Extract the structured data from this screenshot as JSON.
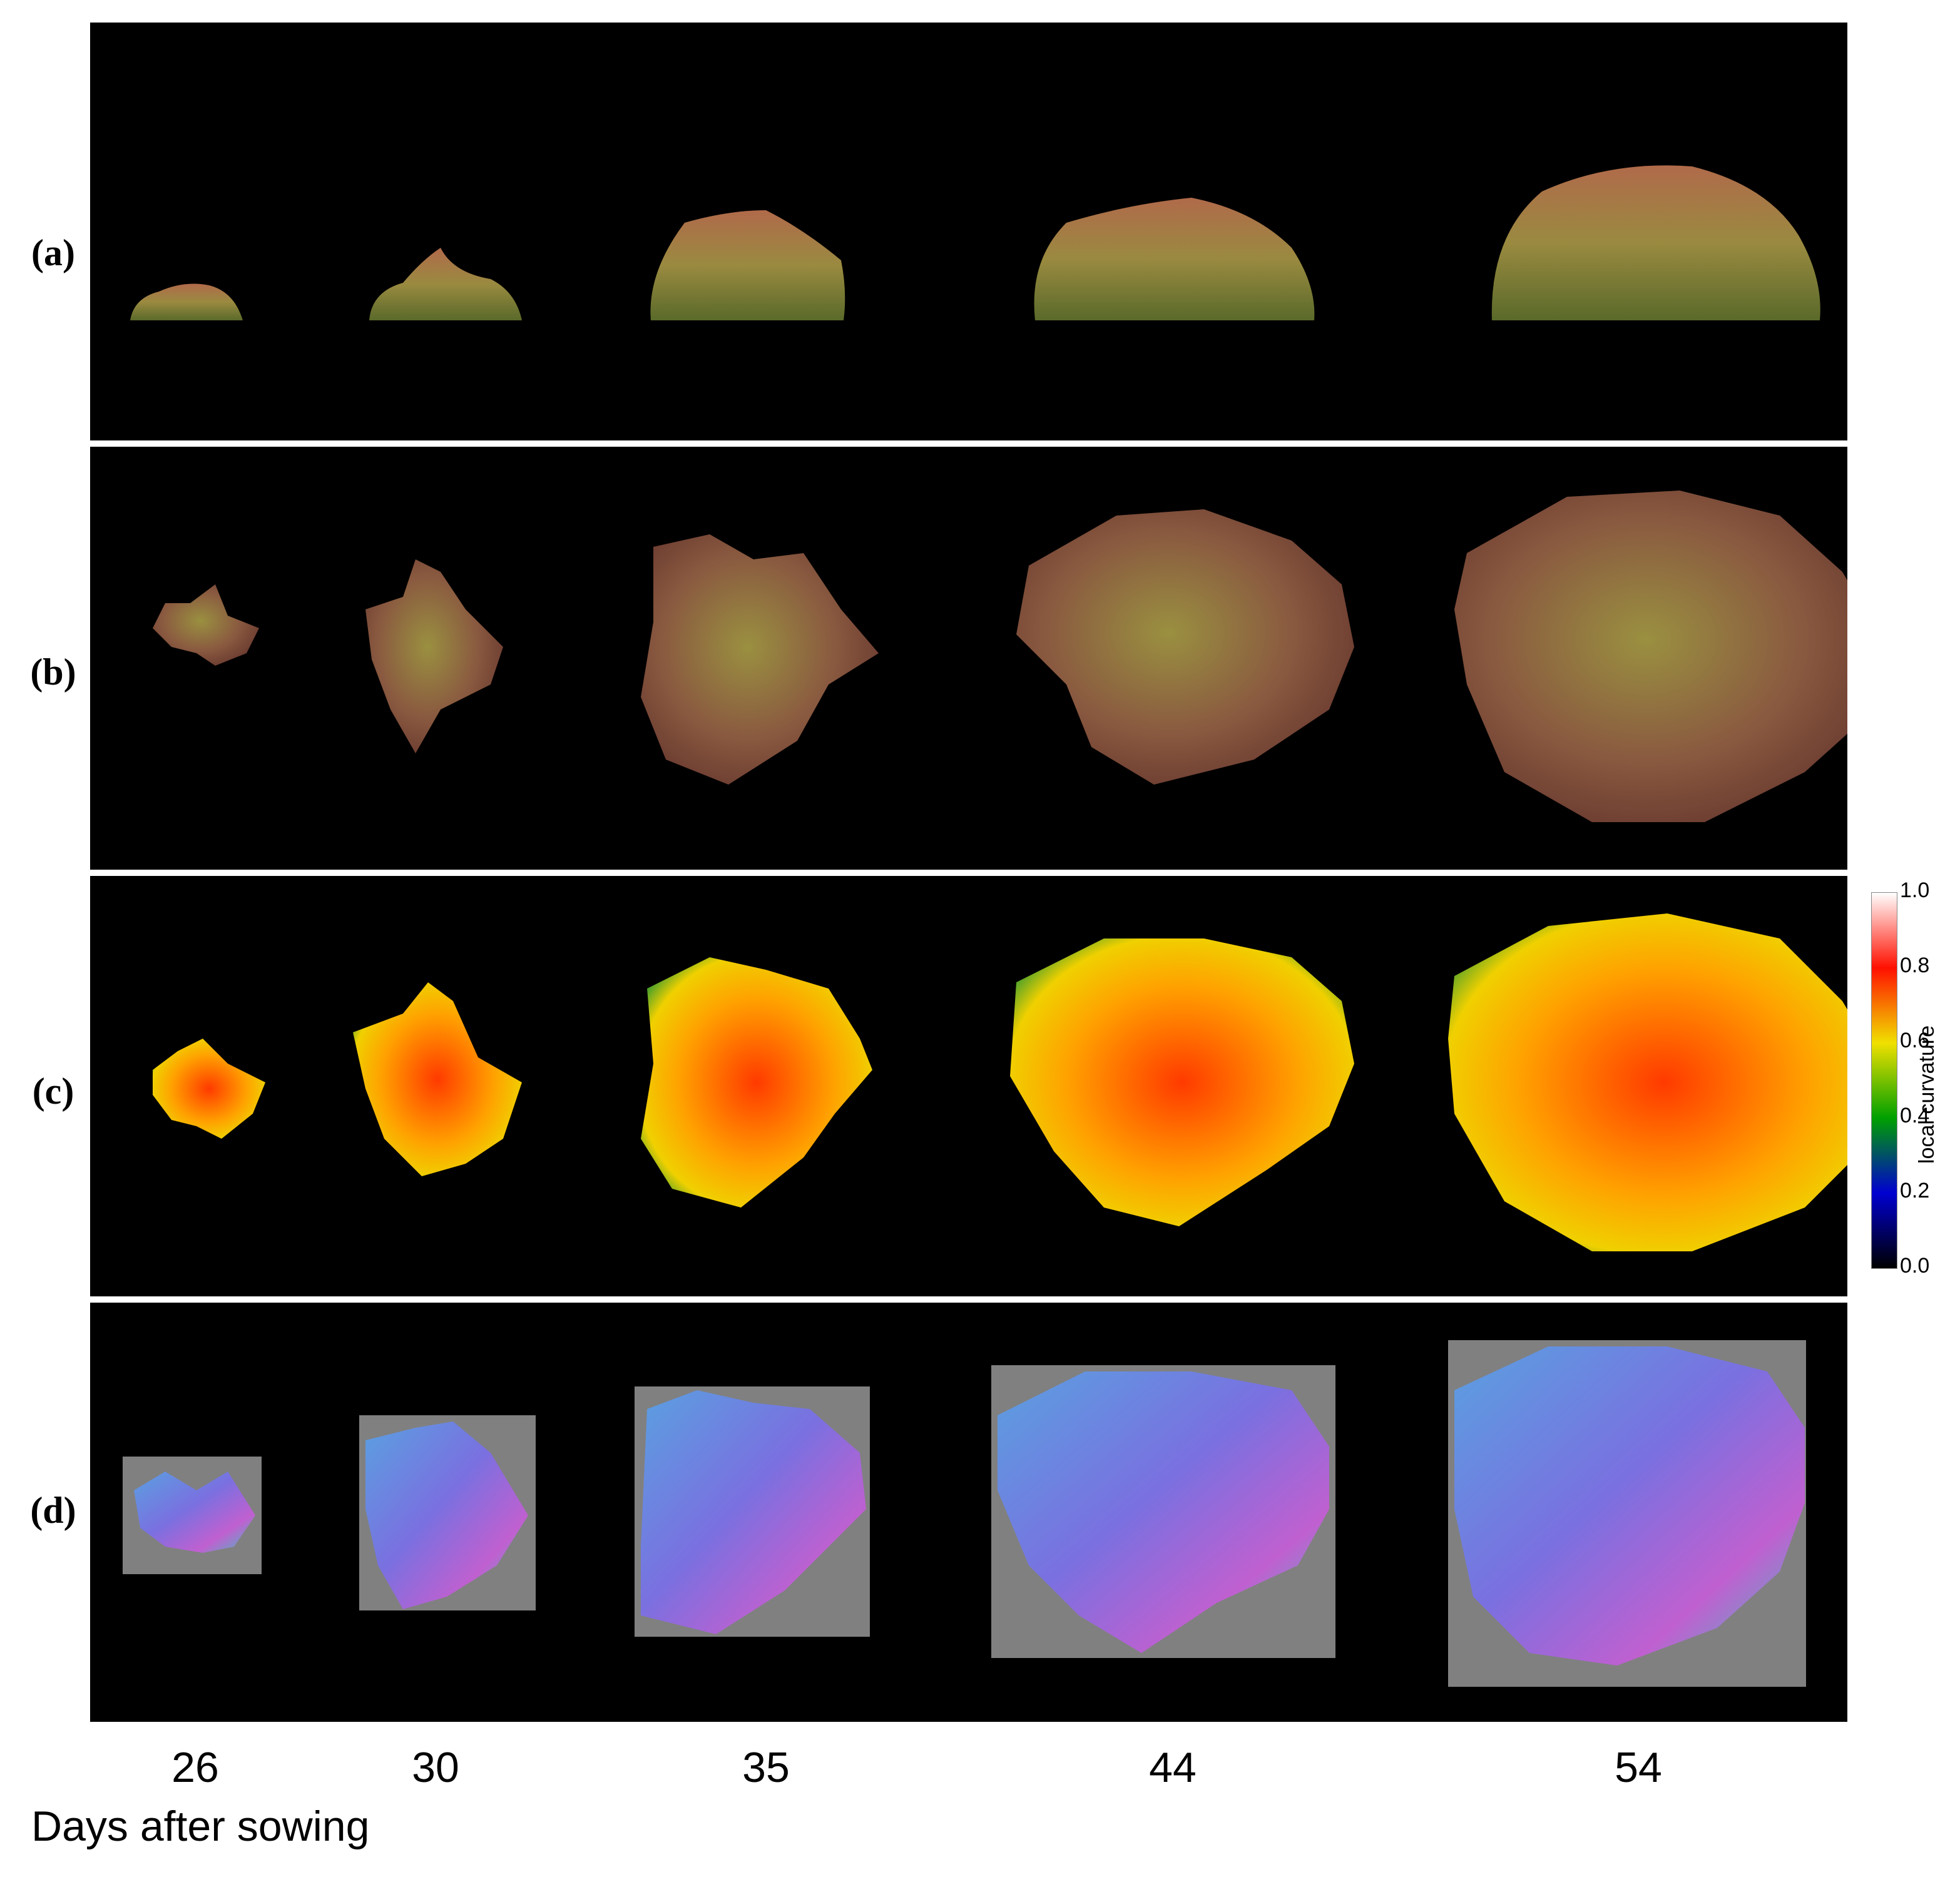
{
  "row_labels": [
    "(a)",
    "(b)",
    "(c)",
    "(d)"
  ],
  "days": [
    "26",
    "30",
    "35",
    "44",
    "54"
  ],
  "x_axis_title": "Days after sowing",
  "colorbar": {
    "label": "local curvature",
    "ticks": [
      "1.0",
      "0.8",
      "0.6",
      "0.4",
      "0.2",
      "0.0"
    ]
  },
  "colors": {
    "background": "#000000",
    "leaf_green": "#8c8a3a",
    "leaf_red": "#8a4a3a",
    "curvature_high": "#ff2a00",
    "curvature_mid": "#f7c400",
    "curvature_low": "#2a9a2a",
    "normal_map_box": "#808080",
    "normal_blue": "#4a8ae0",
    "normal_magenta": "#d06ad8"
  }
}
